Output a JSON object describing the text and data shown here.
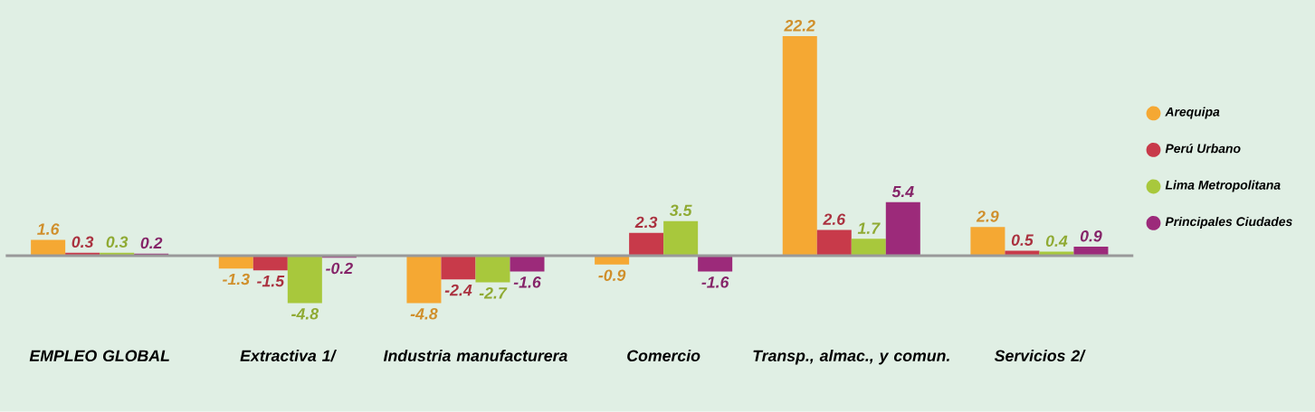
{
  "chart_data": {
    "type": "bar",
    "categories": [
      "EMPLEO GLOBAL",
      "Extractiva 1/",
      "Industria manufacturera",
      "Comercio",
      "Transp., almac., y comun.",
      "Servicios 2/"
    ],
    "series": [
      {
        "name": "Arequipa",
        "color": "#f5a833",
        "values": [
          1.6,
          -1.3,
          -4.8,
          -0.9,
          22.2,
          2.9
        ]
      },
      {
        "name": "Perú Urbano",
        "color": "#c83a4a",
        "values": [
          0.3,
          -1.5,
          -2.4,
          2.3,
          2.6,
          0.5
        ]
      },
      {
        "name": "Lima Metropolitana",
        "color": "#a8c83c",
        "values": [
          0.3,
          -4.8,
          -2.7,
          3.5,
          1.7,
          0.4
        ]
      },
      {
        "name": "Principales Ciudades",
        "color": "#9c2a7a",
        "values": [
          0.2,
          -0.2,
          -1.6,
          -1.6,
          5.4,
          0.9
        ]
      }
    ],
    "data_labels": true,
    "legend": "right",
    "marker": "circle"
  }
}
